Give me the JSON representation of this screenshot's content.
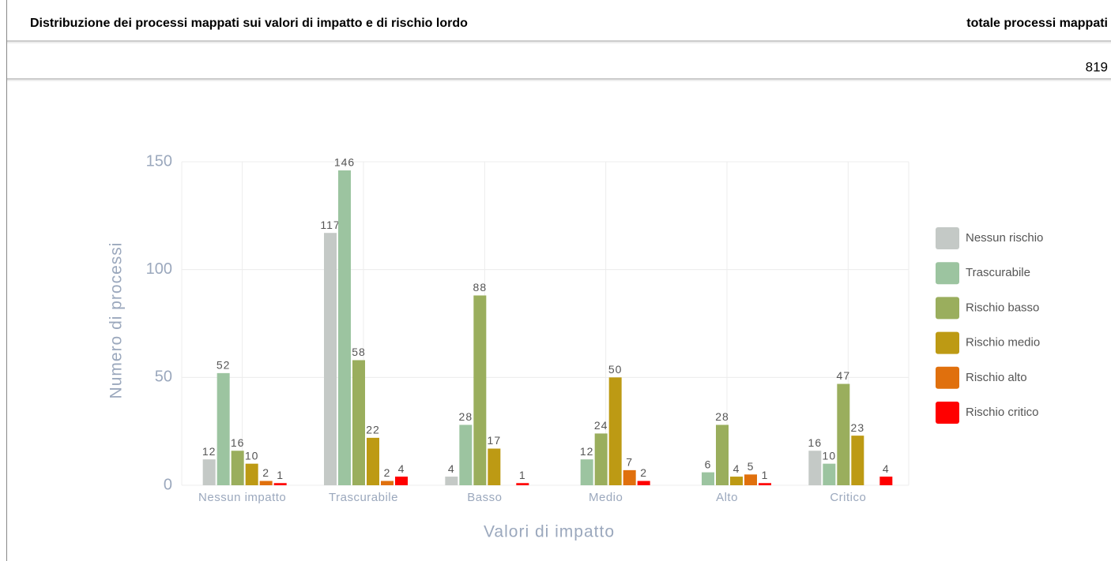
{
  "header": {
    "title": "Distribuzione dei processi mappati sui valori di impatto e di rischio lordo",
    "total_label": "totale processi mappati",
    "total_value": "819"
  },
  "chart_data": {
    "type": "bar",
    "categories": [
      "Nessun impatto",
      "Trascurabile",
      "Basso",
      "Medio",
      "Alto",
      "Critico"
    ],
    "series": [
      {
        "name": "Nessun rischio",
        "color": "#c4c9c6",
        "values": [
          12,
          117,
          4,
          null,
          null,
          16
        ]
      },
      {
        "name": "Trascurabile",
        "color": "#9cc4a0",
        "values": [
          52,
          146,
          28,
          12,
          6,
          10
        ]
      },
      {
        "name": "Rischio basso",
        "color": "#9aae5d",
        "values": [
          16,
          58,
          88,
          24,
          28,
          47
        ]
      },
      {
        "name": "Rischio medio",
        "color": "#bd9a14",
        "values": [
          10,
          22,
          17,
          50,
          4,
          23
        ]
      },
      {
        "name": "Rischio alto",
        "color": "#e0700d",
        "values": [
          2,
          2,
          null,
          7,
          5,
          null
        ]
      },
      {
        "name": "Rischio critico",
        "color": "#ff0000",
        "values": [
          1,
          4,
          1,
          2,
          1,
          4
        ]
      }
    ],
    "xlabel": "Valori di impatto",
    "ylabel": "Numero di processi",
    "ylim": [
      0,
      150
    ],
    "yticks": [
      0,
      50,
      100,
      150
    ],
    "grid": true,
    "legend": "right"
  }
}
